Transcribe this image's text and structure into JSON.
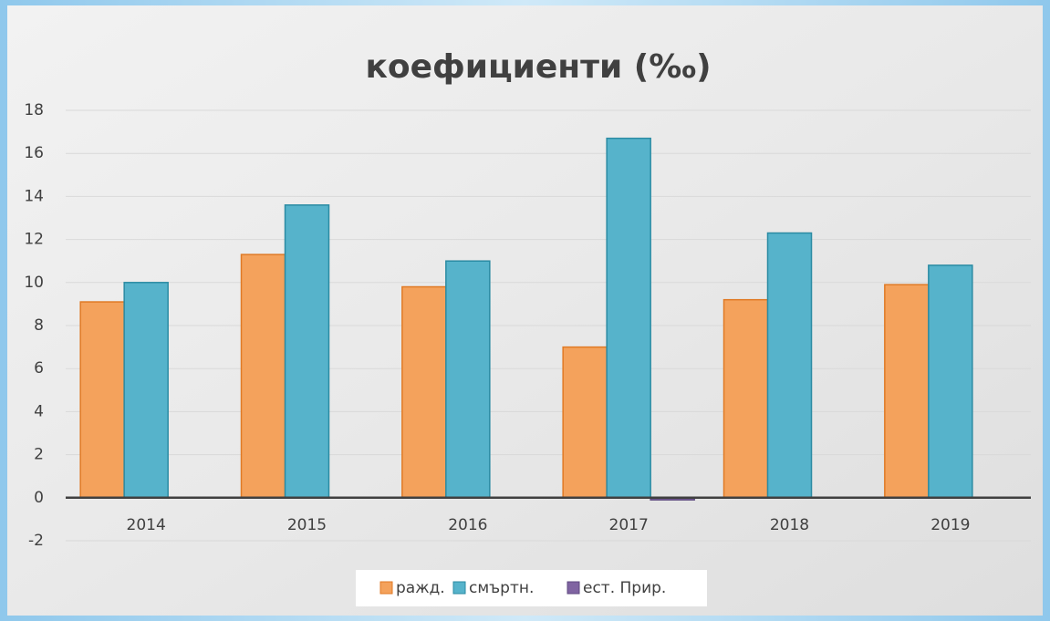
{
  "chart_data": {
    "type": "bar",
    "title": "коефициенти (‰)",
    "categories": [
      "2014",
      "2015",
      "2016",
      "2017",
      "2018",
      "2019"
    ],
    "series": [
      {
        "name": "ражд.",
        "color": "#f4a25c",
        "values": [
          9.1,
          11.3,
          9.8,
          7.0,
          9.2,
          9.9
        ]
      },
      {
        "name": "смъртн.",
        "color": "#56b3cb",
        "values": [
          10.0,
          13.6,
          11.0,
          16.7,
          12.3,
          10.8
        ]
      },
      {
        "name": "ест. Прир.",
        "color": "#8064a2",
        "values": [
          0,
          0,
          0,
          -0.1,
          0,
          0
        ]
      }
    ],
    "ylim": [
      -2,
      18
    ],
    "yticks": [
      -2,
      0,
      2,
      4,
      6,
      8,
      10,
      12,
      14,
      16,
      18
    ],
    "grid": true,
    "legend": "bottom"
  }
}
